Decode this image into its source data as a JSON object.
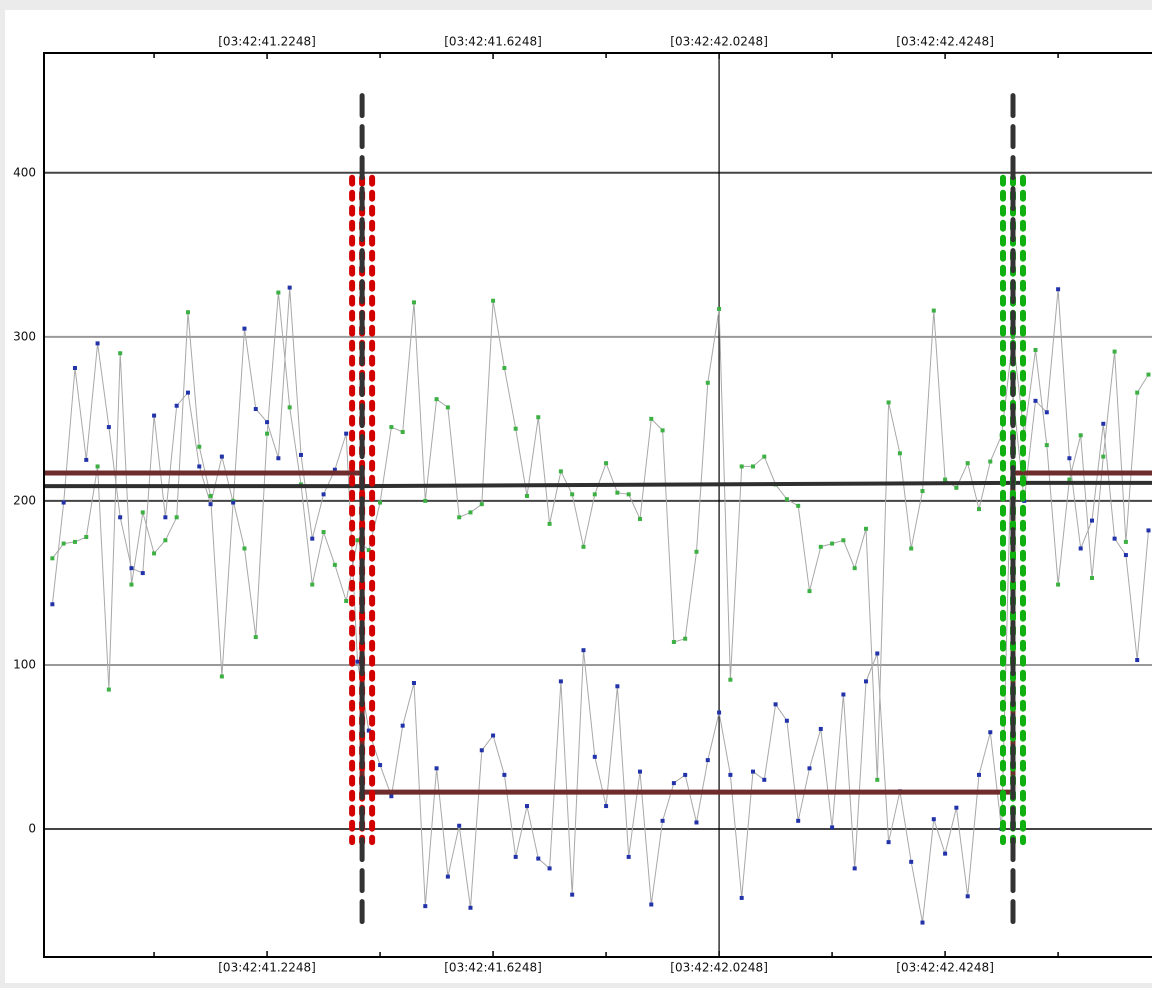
{
  "chart_data": {
    "type": "line",
    "x": [
      40.8448,
      40.8648,
      40.8848,
      40.9048,
      40.9248,
      40.9448,
      40.9648,
      40.9848,
      41.0048,
      41.0248,
      41.0448,
      41.0648,
      41.0848,
      41.1048,
      41.1248,
      41.1448,
      41.1648,
      41.1848,
      41.2048,
      41.2248,
      41.2448,
      41.2648,
      41.2848,
      41.3048,
      41.3248,
      41.3448,
      41.3648,
      41.3848,
      41.4048,
      41.4248,
      41.4448,
      41.4648,
      41.4848,
      41.5048,
      41.5248,
      41.5448,
      41.5648,
      41.5848,
      41.6048,
      41.6248,
      41.6448,
      41.6648,
      41.6848,
      41.7048,
      41.7248,
      41.7448,
      41.7648,
      41.7848,
      41.8048,
      41.8248,
      41.8448,
      41.8648,
      41.8848,
      41.9048,
      41.9248,
      41.9448,
      41.9648,
      41.9848,
      42.0048,
      42.0248,
      42.0448,
      42.0648,
      42.0848,
      42.1048,
      42.1248,
      42.1448,
      42.1648,
      42.1848,
      42.2048,
      42.2248,
      42.2448,
      42.2648,
      42.2848,
      42.3048,
      42.3248,
      42.3448,
      42.3648,
      42.3848,
      42.4048,
      42.4248,
      42.4448,
      42.4648,
      42.4848,
      42.5048,
      42.5248,
      42.5448,
      42.5648,
      42.5848,
      42.6048,
      42.6248,
      42.6448,
      42.6648,
      42.6848,
      42.7048,
      42.7248,
      42.7448,
      42.7648,
      42.7848
    ],
    "series": [
      {
        "color": "#3cb043",
        "line_color": "#a8a8a8",
        "values": [
          165,
          174,
          175,
          178,
          221,
          85,
          290,
          149,
          193,
          168,
          176,
          190,
          315,
          233,
          203,
          93,
          200,
          171,
          117,
          241,
          327,
          257,
          210,
          149,
          181,
          161,
          139,
          176,
          170,
          199,
          245,
          242,
          321,
          200,
          262,
          257,
          190,
          193,
          198,
          322,
          281,
          244,
          203,
          251,
          186,
          218,
          204,
          172,
          204,
          223,
          205,
          204,
          189,
          250,
          243,
          114,
          116,
          169,
          272,
          317,
          91,
          221,
          221,
          227,
          210,
          201,
          197,
          145,
          172,
          174,
          176,
          159,
          183,
          30,
          260,
          229,
          171,
          206,
          316,
          213,
          208,
          223,
          195,
          224,
          240,
          300,
          240,
          292,
          234,
          149,
          213,
          240,
          153,
          227,
          291,
          175,
          266,
          277
        ]
      },
      {
        "color": "#2233aa",
        "line_color": "#a8a8a8",
        "values": [
          137,
          199,
          281,
          225,
          296,
          245,
          190,
          159,
          156,
          252,
          190,
          258,
          266,
          221,
          198,
          227,
          199,
          305,
          256,
          248,
          226,
          330,
          228,
          177,
          204,
          219,
          241,
          102,
          60,
          39,
          20,
          63,
          89,
          -47,
          37,
          -29,
          2,
          -48,
          48,
          57,
          33,
          -17,
          14,
          -18,
          -24,
          90,
          -40,
          109,
          44,
          14,
          87,
          -17,
          35,
          -46,
          5,
          28,
          33,
          4,
          42,
          71,
          33,
          -42,
          35,
          30,
          76,
          66,
          5,
          37,
          61,
          1,
          82,
          -24,
          90,
          107,
          -8,
          23,
          -20,
          -57,
          6,
          -15,
          13,
          -41,
          33,
          59,
          0,
          265,
          200,
          261,
          254,
          329,
          226,
          171,
          188,
          247,
          177,
          167,
          103,
          182
        ]
      }
    ],
    "levels": [
      {
        "color": "#6e2c2c",
        "x": [
          40.83,
          41.393,
          41.393,
          42.545,
          42.545,
          42.791
        ],
        "values": [
          217,
          217,
          22.5,
          22.5,
          217,
          217
        ]
      },
      {
        "color": "#2f2f2f",
        "x": [
          40.83,
          41.393,
          42.545,
          42.791
        ],
        "values": [
          209,
          209,
          211,
          211
        ]
      }
    ],
    "bands": [
      {
        "x": 41.393,
        "from": -8,
        "to": 397,
        "color": "#d40000"
      },
      {
        "x": 42.545,
        "from": -8,
        "to": 397,
        "color": "#10b010"
      }
    ],
    "cursors": [
      {
        "x": 41.393,
        "from": -58,
        "to": 447
      },
      {
        "x": 42.545,
        "from": -58,
        "to": 447
      }
    ],
    "vline": 42.0248,
    "xlim": [
      40.83,
      42.791
    ],
    "ylim": [
      -78,
      473
    ],
    "xticks": [
      {
        "value": 41.2248,
        "label": "[03:42:41.2248]"
      },
      {
        "value": 41.6248,
        "label": "[03:42:41.6248]"
      },
      {
        "value": 42.0248,
        "label": "[03:42:42.0248]"
      },
      {
        "value": 42.4248,
        "label": "[03:42:42.4248]"
      }
    ],
    "xminorticks": [
      41.0248,
      41.4248,
      41.8248,
      42.2248,
      42.6248
    ],
    "yticks": [
      0,
      100,
      200,
      300,
      400
    ],
    "grid": true,
    "grid_colors": [
      "#444444",
      "#999999",
      "#444444",
      "#999999",
      "#444444"
    ]
  }
}
